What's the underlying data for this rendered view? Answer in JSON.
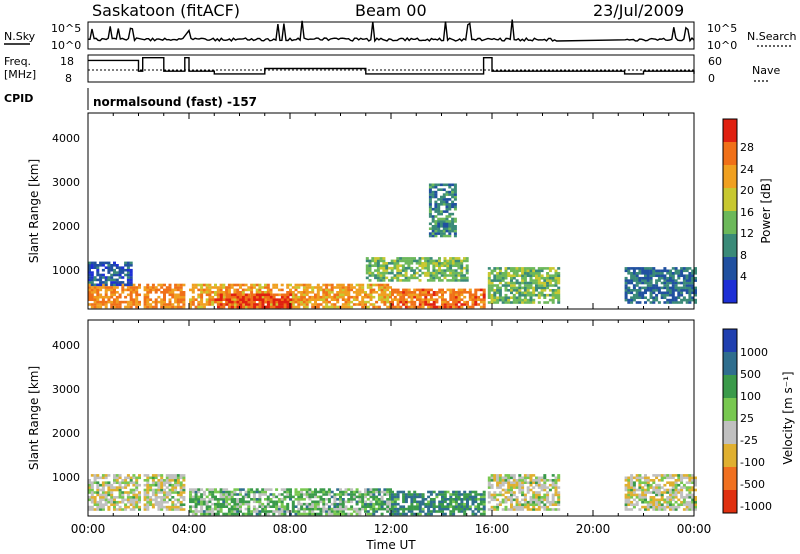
{
  "header": {
    "site": "Saskatoon (fitACF)",
    "beam": "Beam 00",
    "date": "23/Jul/2009"
  },
  "panels": {
    "noise": {
      "left_label": "N.Sky",
      "right_label": "N.Search",
      "left_ticks": [
        "10^5",
        "10^0"
      ],
      "right_ticks": [
        "10^5",
        "10^0"
      ]
    },
    "freq": {
      "left_label_1": "Freq.",
      "left_label_2": "[MHz]",
      "right_label": "Nave",
      "left_ticks": [
        "18",
        "8"
      ],
      "right_ticks": [
        "60",
        "0"
      ]
    },
    "cpid": {
      "label": "CPID",
      "text": "normalsound (fast) -157"
    }
  },
  "axes": {
    "xlabel": "Time UT",
    "ylabel": "Slant Range [km]",
    "xticks": [
      "00:00",
      "04:00",
      "08:00",
      "12:00",
      "16:00",
      "20:00",
      "00:00"
    ],
    "yticks": [
      "1000",
      "2000",
      "3000",
      "4000"
    ]
  },
  "colorbars": {
    "power": {
      "label": "Power [dB]",
      "ticks": [
        "4",
        "8",
        "12",
        "16",
        "20",
        "24",
        "28"
      ],
      "colors": [
        "#1d2fd6",
        "#2050a0",
        "#3a8a78",
        "#6cb85a",
        "#c8c830",
        "#f0a020",
        "#f07018",
        "#e02010"
      ]
    },
    "velocity": {
      "label": "Velocity [m s⁻¹]",
      "ticks": [
        "1000",
        "500",
        "100",
        "25",
        "-25",
        "-100",
        "-500",
        "-1000"
      ],
      "colors": [
        "#2040b0",
        "#2f6e8e",
        "#3a9a4a",
        "#78c850",
        "#c0c0c0",
        "#e0b030",
        "#f07020",
        "#e03010"
      ]
    }
  },
  "chart_data": {
    "type": "heatmap",
    "title": "Saskatoon (fitACF)   Beam 00   23/Jul/2009",
    "xlabel": "Time UT",
    "ylabel": "Slant Range [km]",
    "xlim": [
      "00:00",
      "24:00"
    ],
    "ylim": [
      180,
      4600
    ],
    "data_gaps_ut": [
      [
        "02:00",
        "02:10"
      ],
      [
        "03:50",
        "04:00"
      ],
      [
        "15:40",
        "15:50"
      ],
      [
        "18:35",
        "21:15"
      ]
    ],
    "power_summary": [
      {
        "ut_start": "00:00",
        "ut_end": "03:50",
        "range_km": [
          200,
          700
        ],
        "power_db": 24
      },
      {
        "ut_start": "00:00",
        "ut_end": "01:40",
        "range_km": [
          700,
          1200
        ],
        "power_db": 6
      },
      {
        "ut_start": "04:00",
        "ut_end": "12:00",
        "range_km": [
          200,
          700
        ],
        "power_db": 22
      },
      {
        "ut_start": "05:00",
        "ut_end": "08:00",
        "range_km": [
          200,
          500
        ],
        "power_db": 28
      },
      {
        "ut_start": "12:00",
        "ut_end": "15:40",
        "range_km": [
          200,
          600
        ],
        "power_db": 26
      },
      {
        "ut_start": "11:00",
        "ut_end": "15:00",
        "range_km": [
          800,
          1300
        ],
        "power_db": 14
      },
      {
        "ut_start": "13:30",
        "ut_end": "14:30",
        "range_km": [
          1800,
          3000
        ],
        "power_db": 10
      },
      {
        "ut_start": "15:50",
        "ut_end": "18:35",
        "range_km": [
          300,
          1100
        ],
        "power_db": 14
      },
      {
        "ut_start": "21:15",
        "ut_end": "24:00",
        "range_km": [
          300,
          1100
        ],
        "power_db": 8
      }
    ],
    "velocity_summary": [
      {
        "ut_start": "00:00",
        "ut_end": "03:50",
        "range_km": [
          300,
          1100
        ],
        "velocity_ms": 0
      },
      {
        "ut_start": "04:00",
        "ut_end": "12:00",
        "range_km": [
          200,
          800
        ],
        "velocity_ms": 50
      },
      {
        "ut_start": "12:00",
        "ut_end": "15:40",
        "range_km": [
          200,
          700
        ],
        "velocity_ms": 100
      },
      {
        "ut_start": "15:50",
        "ut_end": "18:35",
        "range_km": [
          300,
          1100
        ],
        "velocity_ms": 0
      },
      {
        "ut_start": "21:15",
        "ut_end": "24:00",
        "range_km": [
          300,
          1100
        ],
        "velocity_ms": 0
      }
    ],
    "frequency_mhz": [
      {
        "ut": "00:00",
        "value": 16
      },
      {
        "ut": "02:00",
        "value": 12
      },
      {
        "ut": "02:10",
        "value": 17
      },
      {
        "ut": "03:00",
        "value": 12
      },
      {
        "ut": "03:50",
        "value": 17
      },
      {
        "ut": "04:00",
        "value": 12
      },
      {
        "ut": "05:00",
        "value": 11
      },
      {
        "ut": "07:00",
        "value": 13
      },
      {
        "ut": "11:00",
        "value": 11
      },
      {
        "ut": "15:40",
        "value": 17
      },
      {
        "ut": "16:00",
        "value": 12
      },
      {
        "ut": "18:35",
        "value": 12
      },
      {
        "ut": "21:15",
        "value": 11
      },
      {
        "ut": "22:00",
        "value": 12
      },
      {
        "ut": "24:00",
        "value": 11
      }
    ]
  }
}
